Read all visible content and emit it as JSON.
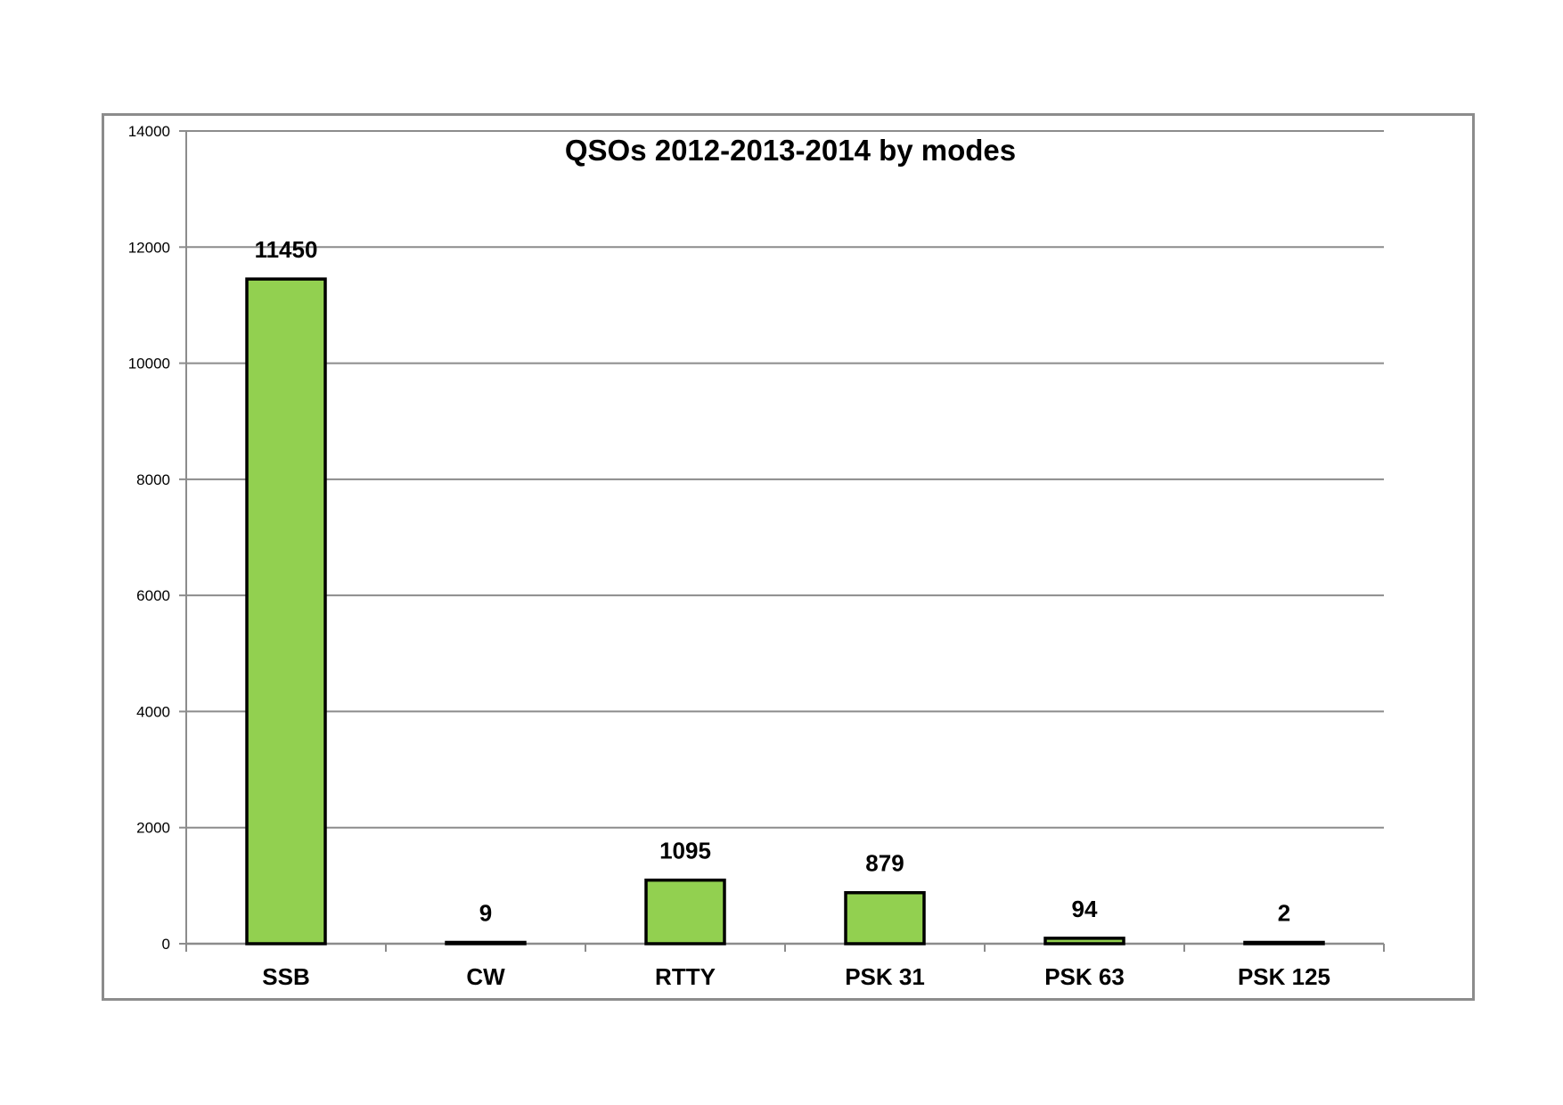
{
  "chart_data": {
    "type": "bar",
    "title": "QSOs 2012-2013-2014 by modes",
    "xlabel": "",
    "ylabel": "",
    "categories": [
      "SSB",
      "CW",
      "RTTY",
      "PSK 31",
      "PSK 63",
      "PSK 125"
    ],
    "values": [
      11450,
      9,
      1095,
      879,
      94,
      2
    ],
    "data_labels": [
      "11450",
      "9",
      "1095",
      "879",
      "94",
      "2"
    ],
    "ylim": [
      0,
      14000
    ],
    "yticks": [
      0,
      2000,
      4000,
      6000,
      8000,
      10000,
      12000,
      14000
    ],
    "ytick_labels": [
      "0",
      "2000",
      "4000",
      "6000",
      "8000",
      "10000",
      "12000",
      "14000"
    ],
    "grid": true,
    "legend": "none",
    "colors": {
      "bar_fill": "#92d050",
      "bar_stroke": "#000000",
      "grid": "#8c8c8c",
      "frame": "#8c8c8c"
    }
  }
}
